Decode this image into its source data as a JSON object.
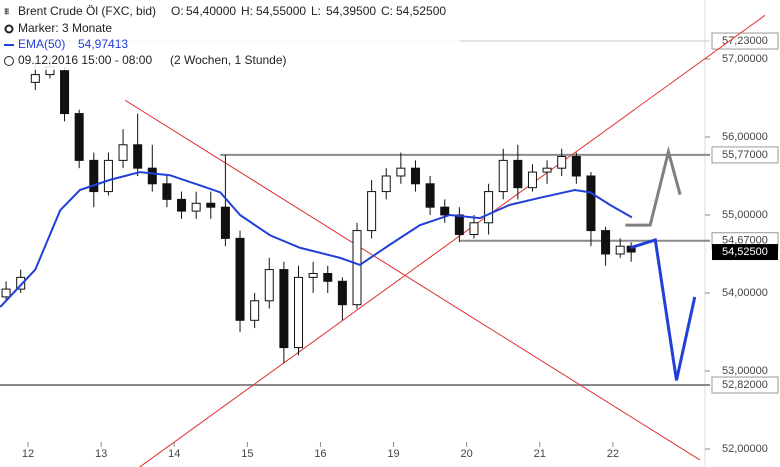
{
  "chart_data": {
    "type": "candlestick",
    "header": {
      "symbol": "Brent Crude Öl (FXC, bid)",
      "ohlc": [
        {
          "key": "O:",
          "text": "54,40000"
        },
        {
          "key": "H:",
          "text": "54,55000"
        },
        {
          "key": "L:",
          "text": "54,39500"
        },
        {
          "key": "C:",
          "text": "54,52500"
        }
      ],
      "marker": "Marker: 3 Monate",
      "period": "09.12.2016 15:00 - 08:00",
      "range": "(2 Wochen, 1 Stunde)"
    },
    "xlim": [
      -0.383,
      9.26
    ],
    "xticks": [
      {
        "value": 0,
        "label": "12"
      },
      {
        "value": 1,
        "label": "13"
      },
      {
        "value": 2,
        "label": "14"
      },
      {
        "value": 3,
        "label": "15"
      },
      {
        "value": 4,
        "label": "16"
      },
      {
        "value": 5,
        "label": "19"
      },
      {
        "value": 6,
        "label": "20"
      },
      {
        "value": 7,
        "label": "21"
      },
      {
        "value": 8,
        "label": "22"
      }
    ],
    "ylim": [
      51.859,
      57.756
    ],
    "yticks": [
      {
        "value": 52,
        "label": "52,00000"
      },
      {
        "value": 53,
        "label": "53,00000"
      },
      {
        "value": 54,
        "label": "54,00000"
      },
      {
        "value": 55,
        "label": "55,00000"
      },
      {
        "value": 56,
        "label": "56,00000"
      },
      {
        "value": 57,
        "label": "57,00000"
      }
    ],
    "candle_color": "#111111",
    "x": [
      -0.3,
      -0.1,
      0.1,
      0.3,
      0.5,
      0.7,
      0.9,
      1.1,
      1.3,
      1.5,
      1.7,
      1.9,
      2.1,
      2.3,
      2.5,
      2.7,
      2.9,
      3.1,
      3.3,
      3.5,
      3.7,
      3.9,
      4.1,
      4.3,
      4.5,
      4.7,
      4.9,
      5.1,
      5.3,
      5.5,
      5.7,
      5.9,
      6.1,
      6.3,
      6.5,
      6.7,
      6.9,
      7.1,
      7.3,
      7.5,
      7.7,
      7.9,
      8.1,
      8.25
    ],
    "open": [
      53.95,
      54.05,
      56.7,
      56.8,
      56.85,
      56.3,
      55.7,
      55.3,
      55.7,
      55.9,
      55.6,
      55.4,
      55.2,
      55.05,
      55.15,
      55.1,
      54.7,
      53.65,
      53.9,
      54.3,
      53.3,
      54.2,
      54.25,
      54.15,
      53.85,
      54.8,
      55.3,
      55.5,
      55.6,
      55.4,
      55.1,
      55.0,
      54.75,
      54.9,
      55.3,
      55.7,
      55.35,
      55.55,
      55.6,
      55.75,
      55.5,
      54.8,
      54.5,
      54.6
    ],
    "high": [
      54.15,
      54.3,
      56.95,
      57.05,
      56.9,
      56.35,
      55.8,
      55.8,
      56.1,
      56.3,
      55.9,
      55.5,
      55.3,
      55.3,
      55.3,
      55.77,
      54.8,
      54.0,
      54.45,
      54.4,
      54.35,
      54.4,
      54.35,
      54.2,
      54.9,
      55.45,
      55.6,
      55.8,
      55.7,
      55.5,
      55.2,
      55.1,
      55.0,
      55.4,
      55.85,
      55.9,
      55.65,
      55.7,
      55.85,
      55.8,
      55.55,
      54.85,
      54.7,
      54.65
    ],
    "low": [
      53.9,
      54.0,
      56.6,
      56.75,
      56.2,
      55.6,
      55.1,
      55.25,
      55.6,
      55.5,
      55.3,
      55.1,
      54.95,
      54.95,
      54.95,
      54.6,
      53.5,
      53.55,
      53.8,
      53.1,
      53.2,
      54.0,
      54.0,
      53.65,
      53.8,
      54.7,
      55.2,
      55.4,
      55.3,
      55.0,
      54.9,
      54.65,
      54.7,
      54.75,
      55.2,
      55.2,
      55.3,
      55.4,
      55.5,
      55.4,
      54.6,
      54.35,
      54.45,
      54.4
    ],
    "close": [
      54.05,
      54.2,
      56.8,
      56.9,
      56.3,
      55.7,
      55.3,
      55.7,
      55.9,
      55.6,
      55.4,
      55.2,
      55.05,
      55.15,
      55.1,
      54.7,
      53.65,
      53.9,
      54.3,
      53.3,
      54.2,
      54.25,
      54.15,
      53.85,
      54.8,
      55.3,
      55.5,
      55.6,
      55.4,
      55.1,
      55.0,
      54.75,
      54.9,
      55.3,
      55.7,
      55.35,
      55.55,
      55.6,
      55.75,
      55.5,
      54.8,
      54.5,
      54.6,
      54.525
    ],
    "ema": {
      "name": "EMA(50)",
      "value_label": "54,97413",
      "color": "#2040d8",
      "x": [
        -0.38,
        0.1,
        0.44,
        0.71,
        1.12,
        1.53,
        1.94,
        2.35,
        2.63,
        2.9,
        3.31,
        3.72,
        4.27,
        4.54,
        4.95,
        5.36,
        5.77,
        6.18,
        6.59,
        7.0,
        7.48,
        7.69,
        7.96,
        8.26
      ],
      "y": [
        53.82,
        54.3,
        55.06,
        55.32,
        55.45,
        55.55,
        55.51,
        55.38,
        55.29,
        55.0,
        54.74,
        54.58,
        54.45,
        54.36,
        54.62,
        54.87,
        55.0,
        54.96,
        55.13,
        55.22,
        55.32,
        55.29,
        55.13,
        54.97
      ]
    },
    "levels": [
      {
        "value": 57.23,
        "label": "57,23000",
        "from": -0.383,
        "color": "#c8c8c8"
      },
      {
        "value": 55.77,
        "label": "55,77000",
        "from": 2.63,
        "color": "#8a8a8a"
      },
      {
        "value": 54.67,
        "label": "54,67000",
        "from": 5.91,
        "color": "#8a8a8a"
      },
      {
        "value": 52.82,
        "label": "52,82000",
        "from": -0.383,
        "color": "#8a8a8a"
      }
    ],
    "last": {
      "value": 54.525,
      "label": "54,52500"
    },
    "trendlines": [
      {
        "color": "#e03030",
        "x": [
          1.33,
          9.19
        ],
        "y": [
          56.47,
          51.86
        ]
      },
      {
        "color": "#e03030",
        "x": [
          1.53,
          10.08
        ],
        "y": [
          51.77,
          57.56
        ]
      }
    ],
    "projections": [
      {
        "color": "#808080",
        "x": [
          8.17,
          8.51,
          8.76,
          8.92
        ],
        "y": [
          54.87,
          54.87,
          55.81,
          55.26
        ]
      },
      {
        "color": "#2040d8",
        "x": [
          8.24,
          8.58,
          8.87,
          9.12
        ],
        "y": [
          54.58,
          54.68,
          52.88,
          53.95
        ]
      }
    ]
  }
}
